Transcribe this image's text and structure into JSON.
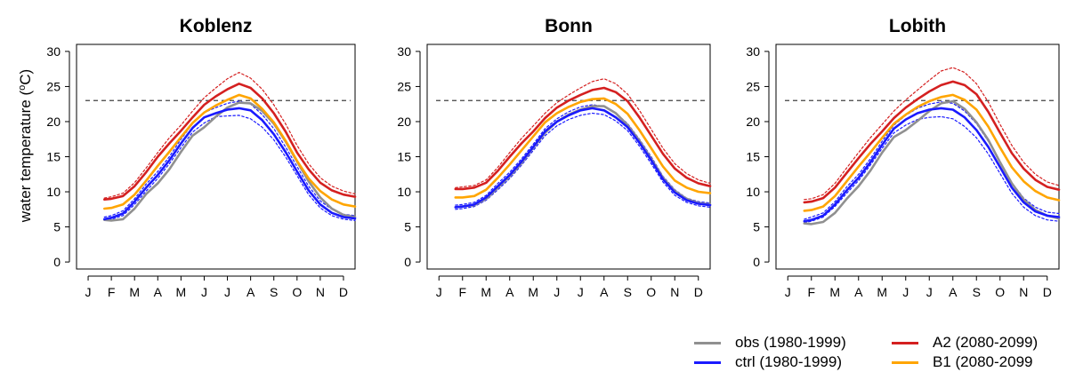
{
  "chart_data": {
    "type": "line",
    "ylabel": "water temperature (°C)",
    "ylabel_parts": {
      "prefix": "water temperature (",
      "superscript": "o",
      "suffix": "C)"
    },
    "months": [
      "J",
      "F",
      "M",
      "A",
      "M",
      "J",
      "J",
      "A",
      "S",
      "O",
      "N",
      "D"
    ],
    "yticks": [
      0,
      5,
      10,
      15,
      20,
      25,
      30
    ],
    "ylim": [
      -1,
      31
    ],
    "xlim": [
      0.5,
      12.5
    ],
    "threshold": 23,
    "colors": {
      "obs": "#909090",
      "ctrl": "#1a1aff",
      "A2": "#d42020",
      "B1": "#ffa500",
      "threshold": "#404040"
    },
    "legend": [
      {
        "key": "obs",
        "label": "obs (1980-1999)"
      },
      {
        "key": "A2",
        "label": "A2 (2080-2099)"
      },
      {
        "key": "ctrl",
        "label": "ctrl (1980-1999)"
      },
      {
        "key": "B1",
        "label": "B1 (2080-2099"
      }
    ],
    "panels": [
      {
        "title": "Koblenz",
        "x": [
          1.7,
          2,
          2.5,
          3,
          3.5,
          4,
          4.5,
          5,
          5.5,
          6,
          6.5,
          7,
          7.5,
          8,
          8.5,
          9,
          9.5,
          10,
          10.5,
          11,
          11.5,
          12,
          12.5
        ],
        "series": [
          {
            "key": "obs",
            "values": [
              6.0,
              5.9,
              6.1,
              7.6,
              9.7,
              11.2,
              13.2,
              15.7,
              18.0,
              19.2,
              20.7,
              22.0,
              22.7,
              22.6,
              21.5,
              19.7,
              17.2,
              14.3,
              11.5,
              9.2,
              7.6,
              6.7,
              6.4
            ]
          },
          {
            "key": "ctrl",
            "values": [
              6.1,
              6.3,
              6.9,
              8.6,
              10.6,
              12.4,
              14.5,
              16.9,
              19.1,
              20.6,
              21.2,
              21.7,
              21.9,
              21.6,
              20.2,
              18.2,
              15.7,
              12.9,
              10.2,
              8.2,
              7.0,
              6.4,
              6.2
            ]
          },
          {
            "key": "A2",
            "values": [
              8.9,
              9.0,
              9.4,
              10.8,
              12.8,
              15.0,
              16.9,
              18.7,
              20.6,
              22.4,
              23.6,
              24.6,
              25.4,
              24.8,
              23.3,
              21.2,
              18.6,
              15.6,
              13.2,
              11.3,
              10.2,
              9.6,
              9.3
            ]
          },
          {
            "key": "B1",
            "values": [
              7.6,
              7.7,
              8.2,
              9.6,
              11.6,
              13.7,
              15.7,
              17.8,
              19.8,
              21.3,
              22.3,
              23.1,
              23.8,
              23.3,
              21.8,
              19.9,
              17.3,
              14.4,
              11.9,
              10.1,
              8.9,
              8.2,
              7.9
            ]
          },
          {
            "key": "A2_hi",
            "dashed": true,
            "color": "A2",
            "values": [
              9.1,
              9.3,
              9.8,
              11.3,
              13.4,
              15.6,
              17.7,
              19.5,
              21.5,
              23.4,
              24.8,
              26.1,
              27.0,
              26.2,
              24.6,
              22.4,
              19.7,
              16.6,
              14.0,
              12.0,
              10.8,
              10.1,
              9.7
            ]
          },
          {
            "key": "ctrl_lo",
            "dashed": true,
            "color": "ctrl",
            "values": [
              6.0,
              6.1,
              6.6,
              8.2,
              10.1,
              11.9,
              14.0,
              16.3,
              18.5,
              19.8,
              20.7,
              20.8,
              20.9,
              20.4,
              19.2,
              17.4,
              15.0,
              12.3,
              9.6,
              7.7,
              6.6,
              6.1,
              5.9
            ]
          },
          {
            "key": "ctrl_hi",
            "dashed": true,
            "color": "ctrl",
            "values": [
              6.4,
              6.6,
              7.3,
              9.0,
              11.1,
              12.9,
              15.0,
              17.5,
              19.7,
              21.3,
              22.0,
              22.6,
              22.9,
              22.5,
              21.0,
              19.0,
              16.4,
              13.6,
              10.8,
              8.7,
              7.5,
              6.8,
              6.6
            ]
          }
        ]
      },
      {
        "title": "Bonn",
        "x": [
          1.7,
          2,
          2.5,
          3,
          3.5,
          4,
          4.5,
          5,
          5.5,
          6,
          6.5,
          7,
          7.5,
          8,
          8.5,
          9,
          9.5,
          10,
          10.5,
          11,
          11.5,
          12,
          12.5
        ],
        "series": [
          {
            "key": "obs",
            "values": [
              7.8,
              7.9,
              8.1,
              9.0,
              10.6,
              12.2,
              14.1,
              16.3,
              18.4,
              20.0,
              21.0,
              21.7,
              22.2,
              22.2,
              21.2,
              19.5,
              17.3,
              14.7,
              12.0,
              10.1,
              9.0,
              8.4,
              8.2
            ]
          },
          {
            "key": "ctrl",
            "values": [
              7.8,
              7.9,
              8.2,
              9.2,
              10.8,
              12.4,
              14.3,
              16.4,
              18.6,
              20.0,
              20.9,
              21.6,
              21.9,
              21.6,
              20.6,
              19.2,
              17.0,
              14.5,
              11.8,
              9.9,
              8.8,
              8.3,
              8.1
            ]
          },
          {
            "key": "A2",
            "values": [
              10.4,
              10.4,
              10.6,
              11.3,
              13.0,
              15.0,
              16.9,
              18.6,
              20.5,
              22.0,
              23.0,
              23.8,
              24.5,
              24.8,
              24.2,
              22.9,
              20.6,
              18.0,
              15.4,
              13.3,
              12.0,
              11.2,
              10.8
            ]
          },
          {
            "key": "B1",
            "values": [
              9.2,
              9.2,
              9.4,
              10.3,
              12.0,
              13.9,
              15.9,
              17.9,
              19.9,
              21.2,
              22.1,
              22.8,
              23.2,
              23.3,
              22.5,
              21.1,
              18.8,
              16.2,
              13.6,
              11.6,
              10.6,
              10.0,
              9.8
            ]
          },
          {
            "key": "A2_hi",
            "dashed": true,
            "color": "A2",
            "values": [
              10.6,
              10.7,
              10.9,
              11.7,
              13.5,
              15.6,
              17.6,
              19.4,
              21.2,
              22.7,
              23.8,
              24.8,
              25.7,
              26.1,
              25.4,
              23.9,
              21.6,
              18.9,
              16.2,
              14.0,
              12.6,
              11.7,
              11.2
            ]
          },
          {
            "key": "ctrl_lo",
            "dashed": true,
            "color": "ctrl",
            "values": [
              7.5,
              7.6,
              7.9,
              8.8,
              10.3,
              11.9,
              13.8,
              15.9,
              18.0,
              19.4,
              20.3,
              20.9,
              21.2,
              21.0,
              20.1,
              18.7,
              16.5,
              14.0,
              11.4,
              9.5,
              8.5,
              8.0,
              7.8
            ]
          },
          {
            "key": "ctrl_hi",
            "dashed": true,
            "color": "ctrl",
            "values": [
              8.1,
              8.2,
              8.5,
              9.5,
              11.2,
              12.8,
              14.7,
              16.8,
              19.0,
              20.4,
              21.4,
              22.1,
              22.4,
              22.2,
              21.2,
              19.7,
              17.5,
              15.0,
              12.2,
              10.3,
              9.1,
              8.6,
              8.4
            ]
          }
        ]
      },
      {
        "title": "Lobith",
        "x": [
          1.7,
          2,
          2.5,
          3,
          3.5,
          4,
          4.5,
          5,
          5.5,
          6,
          6.5,
          7,
          7.5,
          8,
          8.5,
          9,
          9.5,
          10,
          10.5,
          11,
          11.5,
          12,
          12.5
        ],
        "series": [
          {
            "key": "obs",
            "values": [
              5.5,
              5.4,
              5.7,
              7.0,
              9.0,
              10.8,
              13.0,
              15.6,
              17.8,
              18.8,
              20.1,
              21.5,
              22.6,
              22.9,
              21.8,
              19.9,
              17.4,
              14.2,
              11.2,
              8.9,
              7.4,
              6.6,
              6.2
            ]
          },
          {
            "key": "ctrl",
            "values": [
              5.8,
              6.0,
              6.6,
              8.2,
              10.2,
              12.0,
              14.2,
              16.7,
              19.0,
              20.3,
              21.2,
              21.7,
              21.9,
              21.7,
              20.6,
              18.8,
              16.4,
              13.5,
              10.6,
              8.5,
              7.2,
              6.6,
              6.4
            ]
          },
          {
            "key": "A2",
            "values": [
              8.5,
              8.6,
              9.1,
              10.6,
              12.7,
              14.8,
              16.8,
              18.6,
              20.5,
              22.0,
              23.2,
              24.3,
              25.2,
              25.7,
              25.2,
              23.9,
              21.4,
              18.4,
              15.5,
              13.3,
              11.7,
              10.7,
              10.3
            ]
          },
          {
            "key": "B1",
            "values": [
              7.3,
              7.4,
              7.9,
              9.4,
              11.5,
              13.6,
              15.6,
              17.7,
              19.7,
              21.0,
              22.1,
              22.9,
              23.5,
              23.8,
              23.1,
              21.7,
              19.3,
              16.3,
              13.5,
              11.5,
              10.1,
              9.2,
              8.8
            ]
          },
          {
            "key": "A2_hi",
            "dashed": true,
            "color": "A2",
            "values": [
              8.9,
              9.0,
              9.6,
              11.2,
              13.4,
              15.6,
              17.7,
              19.6,
              21.5,
              23.1,
              24.5,
              25.9,
              27.2,
              27.7,
              27.0,
              25.4,
              22.8,
              19.6,
              16.6,
              14.2,
              12.5,
              11.4,
              10.9
            ]
          },
          {
            "key": "ctrl_lo",
            "dashed": true,
            "color": "ctrl",
            "values": [
              5.6,
              5.8,
              6.4,
              7.9,
              9.8,
              11.6,
              13.8,
              16.2,
              18.4,
              19.5,
              20.3,
              20.6,
              20.7,
              20.4,
              19.3,
              17.7,
              15.4,
              12.6,
              9.8,
              7.8,
              6.6,
              6.0,
              5.8
            ]
          },
          {
            "key": "ctrl_hi",
            "dashed": true,
            "color": "ctrl",
            "values": [
              6.1,
              6.4,
              7.0,
              8.6,
              10.7,
              12.5,
              14.7,
              17.2,
              19.5,
              20.9,
              21.9,
              22.5,
              22.8,
              22.6,
              21.5,
              19.7,
              17.2,
              14.3,
              11.3,
              9.1,
              7.8,
              7.1,
              6.9
            ]
          }
        ]
      }
    ]
  }
}
